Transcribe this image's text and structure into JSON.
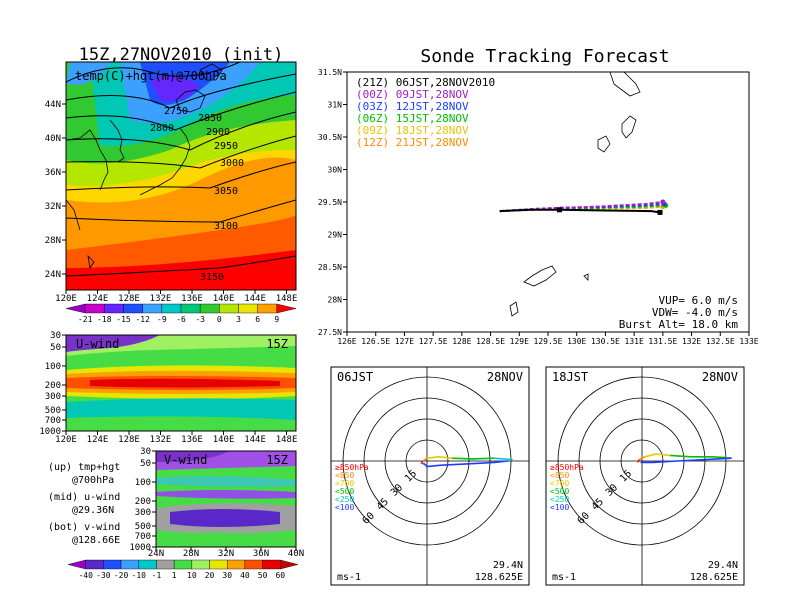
{
  "titles": {
    "left": "15Z,27NOV2010 (init)",
    "right": "Sonde Tracking Forecast"
  },
  "chart_data": [
    {
      "id": "temp-hgt-700",
      "type": "heatmap",
      "title": "15Z,27NOV2010 (init)",
      "label": "temp(C)+hgt(m)@700hPa",
      "x_ticks": [
        "120E",
        "124E",
        "128E",
        "132E",
        "136E",
        "140E",
        "144E",
        "148E"
      ],
      "y_ticks": [
        "24N",
        "28N",
        "32N",
        "36N",
        "40N",
        "44N"
      ],
      "contour_labels": [
        "2750",
        "2800",
        "2850",
        "2900",
        "2950",
        "3000",
        "3050",
        "3100",
        "3150"
      ],
      "colorbar": [
        "-21",
        "-18",
        "-15",
        "-12",
        "-9",
        "-6",
        "-3",
        "0",
        "3",
        "6",
        "9"
      ]
    },
    {
      "id": "u-wind",
      "type": "heatmap",
      "label": "U-wind",
      "time": "15Z",
      "x_ticks": [
        "120E",
        "124E",
        "128E",
        "132E",
        "136E",
        "140E",
        "144E",
        "148E"
      ],
      "y_ticks": [
        "30",
        "50",
        "100",
        "200",
        "300",
        "500",
        "700",
        "1000"
      ]
    },
    {
      "id": "v-wind",
      "type": "heatmap",
      "label": "V-wind",
      "time": "15Z",
      "x_ticks": [
        "24N",
        "28N",
        "32N",
        "36N",
        "40N"
      ],
      "y_ticks": [
        "30",
        "50",
        "100",
        "200",
        "300",
        "500",
        "700",
        "1000"
      ],
      "colorbar": [
        "-40",
        "-30",
        "-20",
        "-10",
        "-1",
        "1",
        "10",
        "20",
        "30",
        "40",
        "50",
        "60"
      ]
    },
    {
      "id": "track",
      "type": "line",
      "title": "Sonde Tracking Forecast",
      "x_ticks": [
        "126E",
        "126.5E",
        "127E",
        "127.5E",
        "128E",
        "128.5E",
        "129E",
        "129.5E",
        "130E",
        "130.5E",
        "131E",
        "131.5E",
        "132E",
        "132.5E",
        "133E"
      ],
      "y_ticks": [
        "27.5N",
        "28N",
        "28.5N",
        "29N",
        "29.5N",
        "30N",
        "30.5N",
        "31N",
        "31.5N"
      ],
      "xlim": [
        126,
        133
      ],
      "ylim": [
        27.5,
        31.5
      ],
      "legend": [
        {
          "text": "(21Z) 06JST,28NOV2010",
          "color": "#000000"
        },
        {
          "text": "(00Z) 09JST,28NOV",
          "color": "#a020c0"
        },
        {
          "text": "(03Z) 12JST,28NOV",
          "color": "#1e3cff"
        },
        {
          "text": "(06Z) 15JST,28NOV",
          "color": "#00c000"
        },
        {
          "text": "(09Z) 18JST,28NOV",
          "color": "#e6c800"
        },
        {
          "text": "(12Z) 21JST,28NOV",
          "color": "#ff8c00"
        }
      ],
      "series": [
        {
          "color": "#000000",
          "x": [
            128.66,
            129.2,
            129.7,
            130.5,
            131.3,
            131.45
          ],
          "y": [
            29.36,
            29.38,
            29.38,
            29.37,
            29.36,
            29.34
          ]
        },
        {
          "color": "#a020c0",
          "x": [
            128.66,
            129.2,
            129.7,
            130.4,
            131.2,
            131.5
          ],
          "y": [
            29.36,
            29.39,
            29.41,
            29.43,
            29.47,
            29.5
          ]
        },
        {
          "color": "#1e3cff",
          "x": [
            128.66,
            129.2,
            129.7,
            130.4,
            131.2,
            131.52
          ],
          "y": [
            29.36,
            29.39,
            29.41,
            29.42,
            29.45,
            29.47
          ]
        },
        {
          "color": "#00c000",
          "x": [
            128.66,
            129.2,
            129.7,
            130.4,
            131.2,
            131.55
          ],
          "y": [
            29.36,
            29.38,
            29.4,
            29.41,
            29.43,
            29.45
          ]
        },
        {
          "color": "#e6c800",
          "x": [
            128.66,
            129.2,
            129.7,
            130.4,
            131.2,
            131.55
          ],
          "y": [
            29.36,
            29.38,
            29.39,
            29.4,
            29.42,
            29.44
          ]
        },
        {
          "color": "#ff8c00",
          "x": [
            128.66,
            129.2,
            129.7,
            130.4,
            131.2,
            131.5
          ],
          "y": [
            29.36,
            29.38,
            29.39,
            29.4,
            29.41,
            29.43
          ]
        }
      ],
      "markers": [
        {
          "x": 129.7,
          "y": 29.38
        },
        {
          "x": 131.45,
          "y": 29.34
        }
      ],
      "params": {
        "vup": "VUP= 6.0 m/s",
        "vdw": "VDW= -4.0 m/s",
        "burst": "Burst Alt= 18.0 km"
      }
    },
    {
      "id": "hodo-06",
      "type": "line",
      "label_time": "06JST",
      "label_date": "28NOV",
      "ring_labels": [
        "15",
        "30",
        "45",
        "60"
      ],
      "levels": [
        {
          "text": "≥850hPa",
          "color": "#ff0000"
        },
        {
          "text": "<850",
          "color": "#ff8c00"
        },
        {
          "text": "<700",
          "color": "#e6c800"
        },
        {
          "text": "<500",
          "color": "#00c000"
        },
        {
          "text": "<250",
          "color": "#00c8c8"
        },
        {
          "text": "<100",
          "color": "#1e3cff"
        }
      ],
      "unit": "ms-1",
      "lat": "29.4N",
      "lon": "128.625E",
      "series": [
        {
          "color": "#ff0000",
          "u": [
            -4,
            -3
          ],
          "v": [
            -2,
            0
          ]
        },
        {
          "color": "#ff8c00",
          "u": [
            -3,
            0
          ],
          "v": [
            0,
            2
          ]
        },
        {
          "color": "#e6c800",
          "u": [
            0,
            8,
            18
          ],
          "v": [
            2,
            3,
            2
          ]
        },
        {
          "color": "#00c000",
          "u": [
            18,
            32,
            48
          ],
          "v": [
            2,
            1.5,
            2
          ]
        },
        {
          "color": "#00c8c8",
          "u": [
            48,
            60,
            58
          ],
          "v": [
            2,
            1,
            0
          ]
        },
        {
          "color": "#1e3cff",
          "u": [
            58,
            48,
            30,
            10,
            0,
            -2,
            -3
          ],
          "v": [
            0,
            -1,
            -2,
            -3,
            -4,
            -2,
            -2
          ]
        }
      ]
    },
    {
      "id": "hodo-18",
      "type": "line",
      "label_time": "18JST",
      "label_date": "28NOV",
      "ring_labels": [
        "15",
        "30",
        "45",
        "60"
      ],
      "levels": [
        {
          "text": "≥850hPa",
          "color": "#ff0000"
        },
        {
          "text": "<850",
          "color": "#ff8c00"
        },
        {
          "text": "<700",
          "color": "#e6c800"
        },
        {
          "text": "<500",
          "color": "#00c000"
        },
        {
          "text": "<250",
          "color": "#00c8c8"
        },
        {
          "text": "<100",
          "color": "#1e3cff"
        }
      ],
      "unit": "ms-1",
      "lat": "29.4N",
      "lon": "128.625E",
      "series": [
        {
          "color": "#ff0000",
          "u": [
            -3,
            -2
          ],
          "v": [
            -1,
            1
          ]
        },
        {
          "color": "#ff8c00",
          "u": [
            -2,
            2
          ],
          "v": [
            1,
            3
          ]
        },
        {
          "color": "#e6c800",
          "u": [
            2,
            10,
            20
          ],
          "v": [
            3,
            5,
            4
          ]
        },
        {
          "color": "#00c000",
          "u": [
            20,
            35,
            50,
            60
          ],
          "v": [
            4,
            3,
            3,
            2.5
          ]
        },
        {
          "color": "#00c8c8",
          "u": [
            60,
            64
          ],
          "v": [
            2.5,
            2
          ]
        },
        {
          "color": "#1e3cff",
          "u": [
            64,
            45,
            25,
            8,
            -1
          ],
          "v": [
            2,
            1,
            0,
            -1,
            -1
          ]
        }
      ]
    }
  ],
  "footer": {
    "up": "(up) tmp+hgt",
    "up2": "@700hPa",
    "mid": "(mid) u-wind",
    "mid2": "@29.36N",
    "bot": "(bot) v-wind",
    "bot2": "@128.66E"
  }
}
